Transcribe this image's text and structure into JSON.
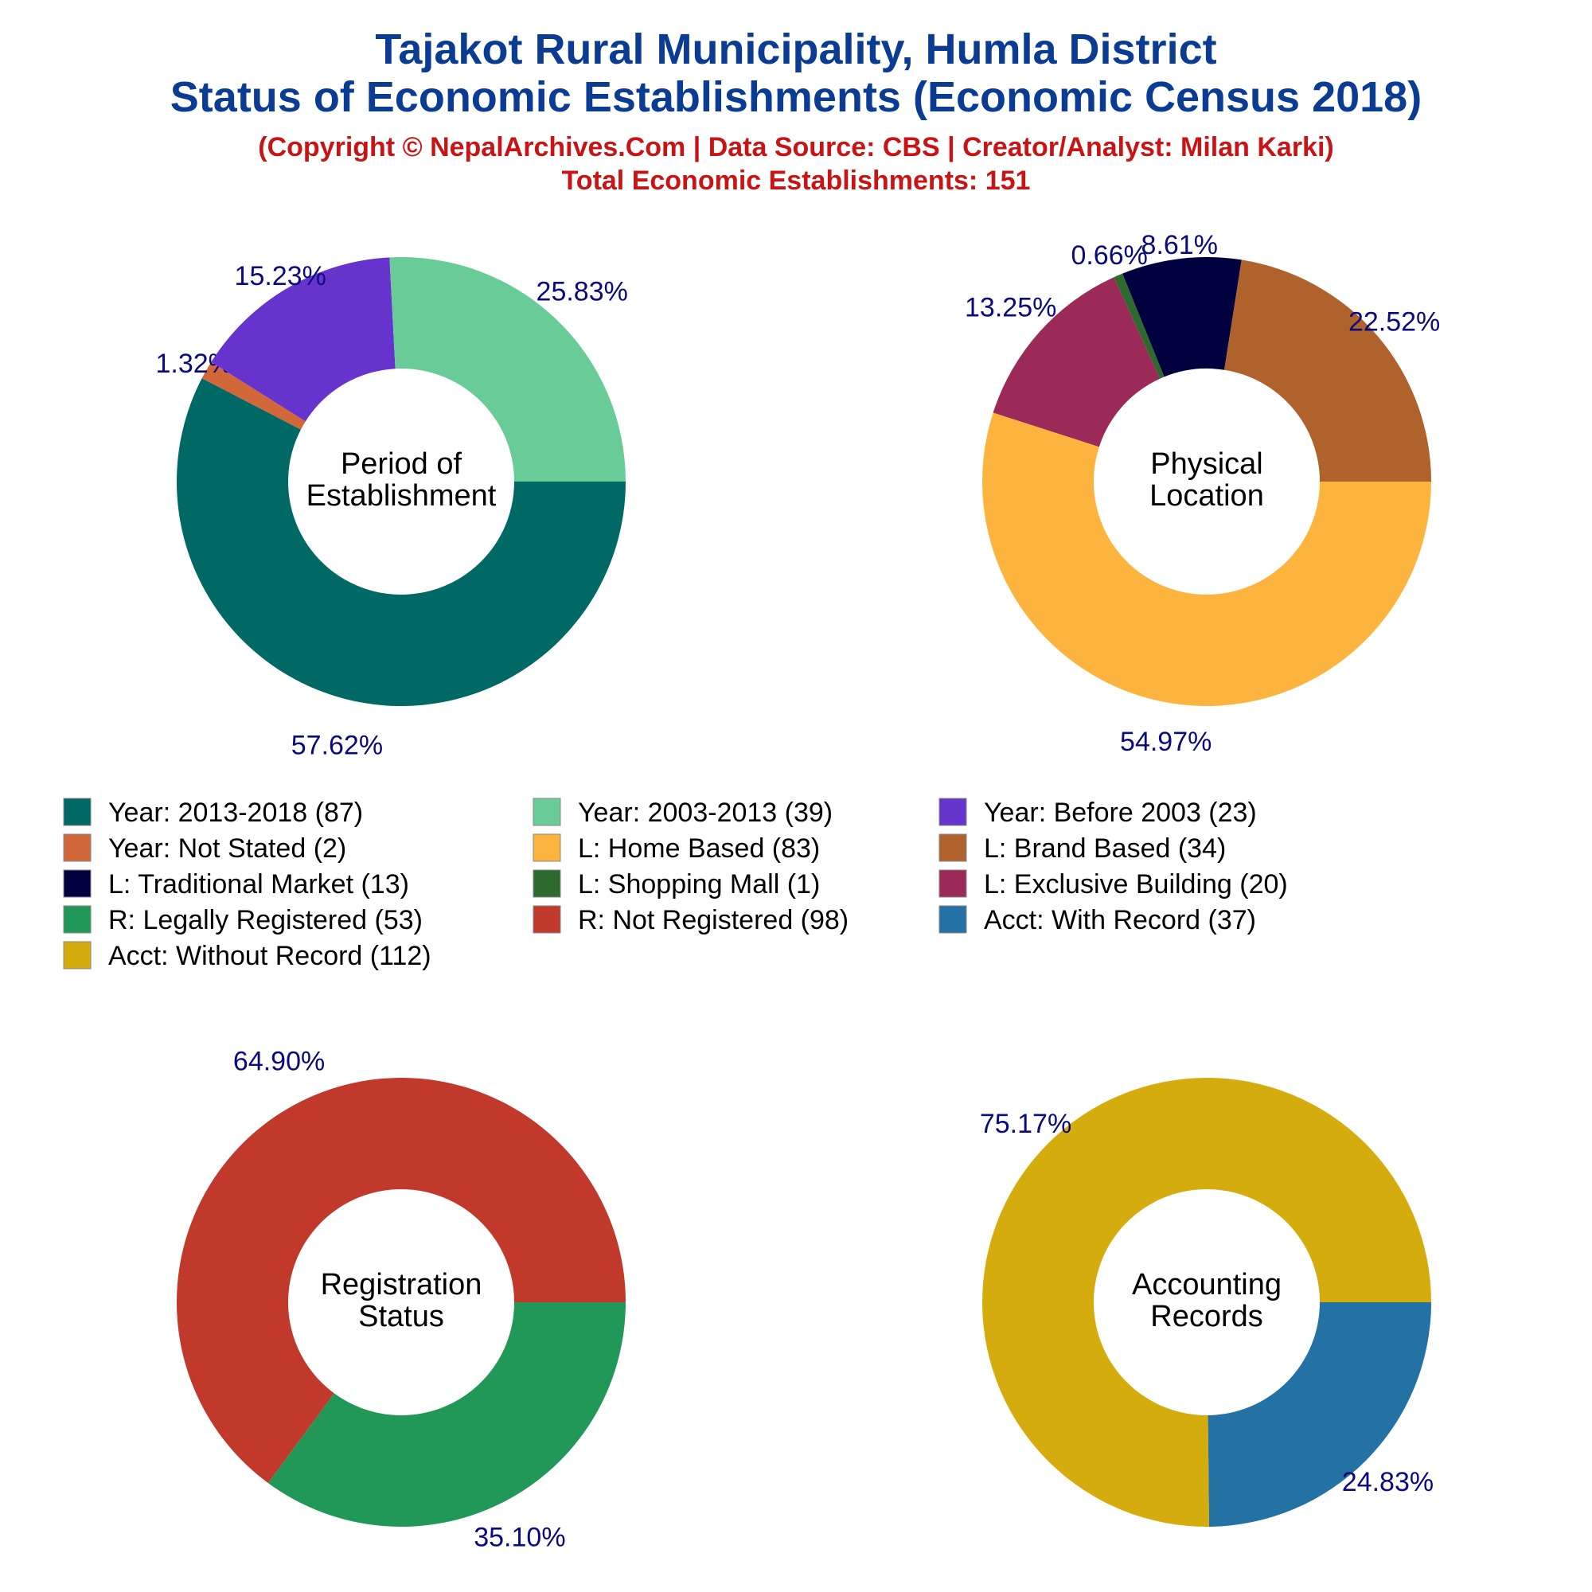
{
  "header": {
    "title_line1": "Tajakot Rural Municipality, Humla District",
    "title_line2": "Status of Economic Establishments (Economic Census 2018)",
    "copyright": "(Copyright © NepalArchives.Com | Data Source: CBS | Creator/Analyst: Milan Karki)",
    "total": "Total Economic Establishments: 151"
  },
  "chart_data": [
    {
      "type": "pie",
      "center_label": [
        "Period of",
        "Establishment"
      ],
      "slices": [
        {
          "label": "Year: 2013-2018",
          "value": 87,
          "pct": "57.62%",
          "color": "#006865"
        },
        {
          "label": "Year: Not Stated",
          "value": 2,
          "pct": "1.32%",
          "color": "#d2683a"
        },
        {
          "label": "Year: Before 2003",
          "value": 23,
          "pct": "15.23%",
          "color": "#6633cc"
        },
        {
          "label": "Year: 2003-2013",
          "value": 39,
          "pct": "25.83%",
          "color": "#69cc98"
        }
      ]
    },
    {
      "type": "pie",
      "center_label": [
        "Physical",
        "Location"
      ],
      "slices": [
        {
          "label": "L: Home Based",
          "value": 83,
          "pct": "54.97%",
          "color": "#fdb43f"
        },
        {
          "label": "L: Exclusive Building",
          "value": 20,
          "pct": "13.25%",
          "color": "#9b2a58"
        },
        {
          "label": "L: Shopping Mall",
          "value": 1,
          "pct": "0.66%",
          "color": "#2d6a2d"
        },
        {
          "label": "L: Traditional Market",
          "value": 13,
          "pct": "8.61%",
          "color": "#00003f"
        },
        {
          "label": "L: Brand Based",
          "value": 34,
          "pct": "22.52%",
          "color": "#b0622d"
        }
      ]
    },
    {
      "type": "pie",
      "center_label": [
        "Registration",
        "Status"
      ],
      "slices": [
        {
          "label": "R: Legally Registered",
          "value": 53,
          "pct": "35.10%",
          "color": "#229858"
        },
        {
          "label": "R: Not Registered",
          "value": 98,
          "pct": "64.90%",
          "color": "#c0392b"
        }
      ]
    },
    {
      "type": "pie",
      "center_label": [
        "Accounting",
        "Records"
      ],
      "slices": [
        {
          "label": "Acct: With Record",
          "value": 37,
          "pct": "24.83%",
          "color": "#2471a3"
        },
        {
          "label": "Acct: Without Record",
          "value": 112,
          "pct": "75.17%",
          "color": "#d4ac0d"
        }
      ]
    }
  ],
  "legend": [
    {
      "text": "Year: 2013-2018 (87)",
      "color": "#006865"
    },
    {
      "text": "Year: 2003-2013 (39)",
      "color": "#69cc98"
    },
    {
      "text": "Year: Before 2003 (23)",
      "color": "#6633cc"
    },
    {
      "text": "Year: Not Stated (2)",
      "color": "#d2683a"
    },
    {
      "text": "L: Home Based (83)",
      "color": "#fdb43f"
    },
    {
      "text": "L: Brand Based (34)",
      "color": "#b0622d"
    },
    {
      "text": "L: Traditional Market (13)",
      "color": "#00003f"
    },
    {
      "text": "L: Shopping Mall (1)",
      "color": "#2d6a2d"
    },
    {
      "text": "L: Exclusive Building (20)",
      "color": "#9b2a58"
    },
    {
      "text": "R: Legally Registered (53)",
      "color": "#229858"
    },
    {
      "text": "R: Not Registered (98)",
      "color": "#c0392b"
    },
    {
      "text": "Acct: With Record (37)",
      "color": "#2471a3"
    },
    {
      "text": "Acct: Without Record (112)",
      "color": "#d4ac0d"
    }
  ]
}
